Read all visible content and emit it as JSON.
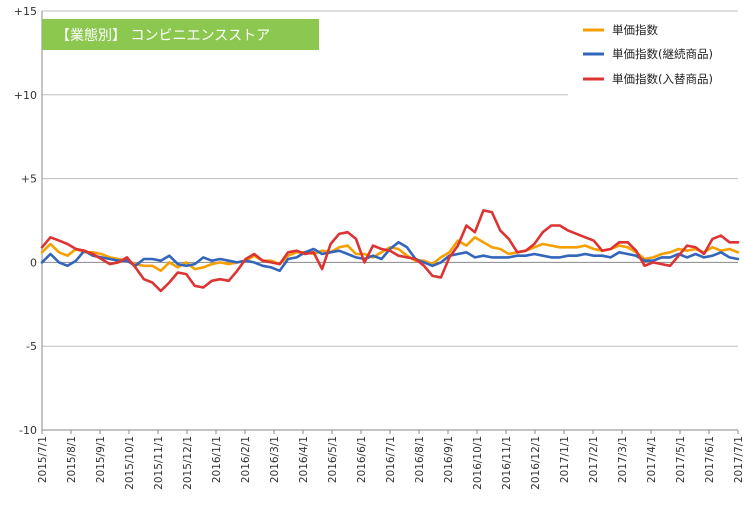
{
  "chart_data": {
    "type": "line",
    "title": "【業態別】 コンビニエンスストア",
    "title_bg_color": "#8cc850",
    "ylim": [
      -10,
      15
    ],
    "y_ticks": [
      15,
      10,
      5,
      0,
      -5,
      -10
    ],
    "y_tick_labels": [
      "+15",
      "+10",
      "+5",
      "0",
      "-5",
      "-10"
    ],
    "x_ticks": [
      "2015/7/1",
      "2015/8/1",
      "2015/9/1",
      "2015/10/1",
      "2015/11/1",
      "2015/12/1",
      "2016/1/1",
      "2016/2/1",
      "2016/3/1",
      "2016/4/1",
      "2016/5/1",
      "2016/6/1",
      "2016/7/1",
      "2016/8/1",
      "2016/9/1",
      "2016/10/1",
      "2016/11/1",
      "2016/12/1",
      "2017/1/1",
      "2017/2/1",
      "2017/3/1",
      "2017/4/1",
      "2017/5/1",
      "2017/6/1",
      "2017/7/1"
    ],
    "gridlines": true,
    "legend_position": "top-right",
    "series": [
      {
        "name": "単価指数",
        "color": "#f5a000",
        "values": [
          0.6,
          1.1,
          0.6,
          0.4,
          0.8,
          0.6,
          0.6,
          0.5,
          0.3,
          0.2,
          0.1,
          -0.1,
          -0.2,
          -0.2,
          -0.5,
          0.0,
          -0.3,
          0.0,
          -0.4,
          -0.3,
          -0.1,
          0.0,
          -0.1,
          0.0,
          0.1,
          0.4,
          0.1,
          0.1,
          -0.1,
          0.4,
          0.6,
          0.6,
          0.5,
          0.7,
          0.6,
          0.9,
          1.0,
          0.5,
          0.5,
          0.3,
          0.6,
          0.9,
          0.8,
          0.4,
          0.1,
          0.1,
          -0.1,
          0.3,
          0.6,
          1.3,
          1.0,
          1.5,
          1.2,
          0.9,
          0.8,
          0.5,
          0.6,
          0.7,
          0.9,
          1.1,
          1.0,
          0.9,
          0.9,
          0.9,
          1.0,
          0.8,
          0.7,
          0.8,
          1.0,
          0.9,
          0.6,
          0.2,
          0.3,
          0.5,
          0.6,
          0.8,
          0.7,
          0.8,
          0.6,
          0.9,
          0.7,
          0.8,
          0.6
        ]
      },
      {
        "name": "単価指数(継続商品)",
        "color": "#3366bb",
        "values": [
          0.0,
          0.5,
          0.0,
          -0.2,
          0.1,
          0.7,
          0.4,
          0.3,
          0.2,
          0.1,
          0.1,
          -0.2,
          0.2,
          0.2,
          0.1,
          0.4,
          -0.1,
          -0.2,
          -0.1,
          0.3,
          0.1,
          0.2,
          0.1,
          0.0,
          0.1,
          0.0,
          -0.2,
          -0.3,
          -0.5,
          0.2,
          0.3,
          0.6,
          0.8,
          0.5,
          0.6,
          0.7,
          0.5,
          0.3,
          0.2,
          0.4,
          0.2,
          0.8,
          1.2,
          0.9,
          0.2,
          0.0,
          -0.2,
          0.0,
          0.4,
          0.5,
          0.6,
          0.3,
          0.4,
          0.3,
          0.3,
          0.3,
          0.4,
          0.4,
          0.5,
          0.4,
          0.3,
          0.3,
          0.4,
          0.4,
          0.5,
          0.4,
          0.4,
          0.3,
          0.6,
          0.5,
          0.4,
          0.1,
          0.1,
          0.3,
          0.3,
          0.5,
          0.3,
          0.5,
          0.3,
          0.4,
          0.6,
          0.3,
          0.2
        ]
      },
      {
        "name": "単価指数(入替商品)",
        "color": "#dd3333",
        "values": [
          0.9,
          1.5,
          1.3,
          1.1,
          0.8,
          0.7,
          0.5,
          0.2,
          -0.1,
          0.0,
          0.3,
          -0.3,
          -1.0,
          -1.2,
          -1.7,
          -1.2,
          -0.6,
          -0.7,
          -1.4,
          -1.5,
          -1.1,
          -1.0,
          -1.1,
          -0.5,
          0.2,
          0.5,
          0.1,
          0.0,
          -0.1,
          0.6,
          0.7,
          0.5,
          0.6,
          -0.4,
          1.1,
          1.7,
          1.8,
          1.4,
          0.0,
          1.0,
          0.8,
          0.7,
          0.4,
          0.3,
          0.2,
          -0.2,
          -0.8,
          -0.9,
          0.3,
          1.0,
          2.2,
          1.8,
          3.1,
          3.0,
          1.9,
          1.4,
          0.6,
          0.7,
          1.1,
          1.8,
          2.2,
          2.2,
          1.9,
          1.7,
          1.5,
          1.3,
          0.7,
          0.8,
          1.2,
          1.2,
          0.7,
          -0.2,
          0.0,
          -0.1,
          -0.2,
          0.4,
          1.0,
          0.9,
          0.5,
          1.4,
          1.6,
          1.2,
          1.2
        ]
      }
    ]
  }
}
